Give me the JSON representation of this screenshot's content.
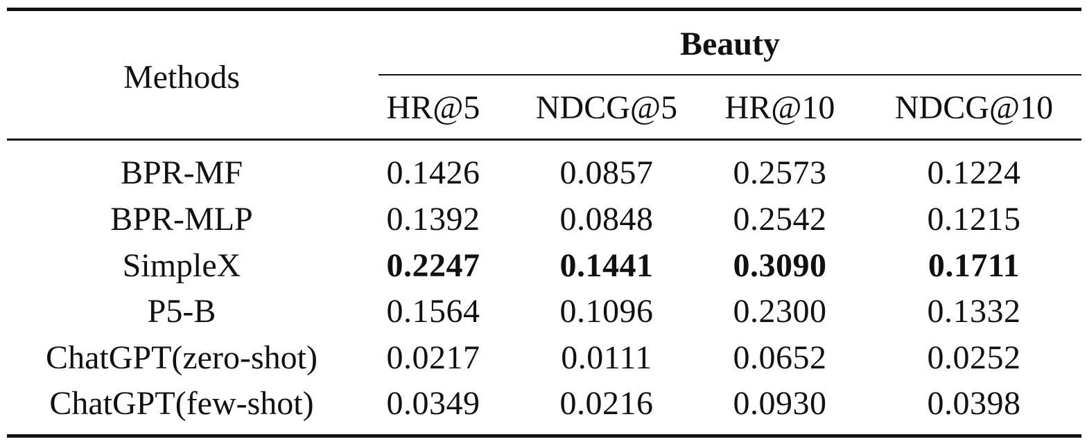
{
  "table": {
    "methods_header": "Methods",
    "group_header": "Beauty",
    "columns": [
      "HR@5",
      "NDCG@5",
      "HR@10",
      "NDCG@10"
    ],
    "rows": [
      {
        "method": "BPR-MF",
        "values": [
          "0.1426",
          "0.0857",
          "0.2573",
          "0.1224"
        ]
      },
      {
        "method": "BPR-MLP",
        "values": [
          "0.1392",
          "0.0848",
          "0.2542",
          "0.1215"
        ]
      },
      {
        "method": "SimpleX",
        "values": [
          "0.2247",
          "0.1441",
          "0.3090",
          "0.1711"
        ],
        "bold": true
      },
      {
        "method": "P5-B",
        "values": [
          "0.1564",
          "0.1096",
          "0.2300",
          "0.1332"
        ]
      },
      {
        "method": "ChatGPT(zero-shot)",
        "values": [
          "0.0217",
          "0.0111",
          "0.0652",
          "0.0252"
        ]
      },
      {
        "method": "ChatGPT(few-shot)",
        "values": [
          "0.0349",
          "0.0216",
          "0.0930",
          "0.0398"
        ]
      }
    ]
  }
}
